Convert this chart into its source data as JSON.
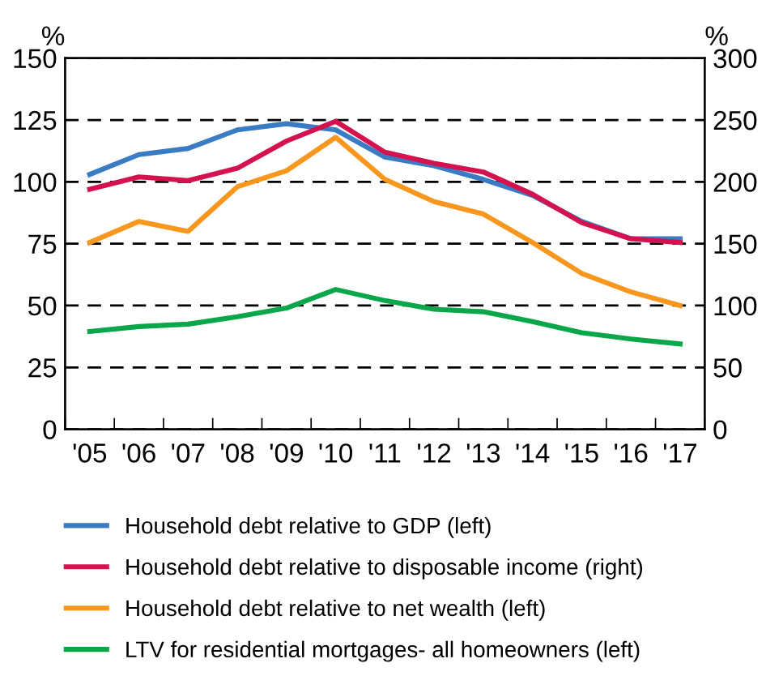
{
  "chart_data": {
    "type": "line",
    "ylabel": "%",
    "y2label": "%",
    "categories": [
      "'05",
      "'06",
      "'07",
      "'08",
      "'09",
      "'10",
      "'11",
      "'12",
      "'13",
      "'14",
      "'15",
      "'16",
      "'17"
    ],
    "series": [
      {
        "name": "Household debt relative to GDP (left)",
        "color": "#3a7cc3",
        "values": [
          103,
          111,
          113.5,
          121,
          123.5,
          121,
          110,
          106.5,
          101,
          94.5,
          84,
          77,
          77
        ]
      },
      {
        "name": "Household debt relative to disposable income (right)",
        "color": "#d3124f",
        "axis": "y2",
        "values": [
          194,
          204,
          201,
          211,
          233,
          249,
          224,
          215,
          208,
          190,
          167,
          154,
          151
        ]
      },
      {
        "name": "Household debt relative to net wealth (left)",
        "color": "#f7971e",
        "values": [
          75.5,
          84,
          80,
          98,
          104.5,
          118,
          101,
          92,
          87,
          75.5,
          63,
          55.5,
          50
        ]
      },
      {
        "name": "LTV for residential mortgages- all homeowners (left)",
        "color": "#0aa64a",
        "values": [
          39.5,
          41.5,
          42.5,
          45.5,
          49,
          56.5,
          52,
          48.5,
          47.5,
          43.5,
          39,
          36.5,
          34.5
        ]
      }
    ],
    "ylim": [
      0,
      150
    ],
    "yticks": [
      0,
      25,
      50,
      75,
      100,
      125,
      150
    ],
    "y2lim": [
      0,
      300
    ],
    "y2ticks": [
      0,
      50,
      100,
      150,
      200,
      250,
      300
    ],
    "grid": "y",
    "legend": "bottom",
    "line_style": "solid",
    "marker": "none"
  }
}
